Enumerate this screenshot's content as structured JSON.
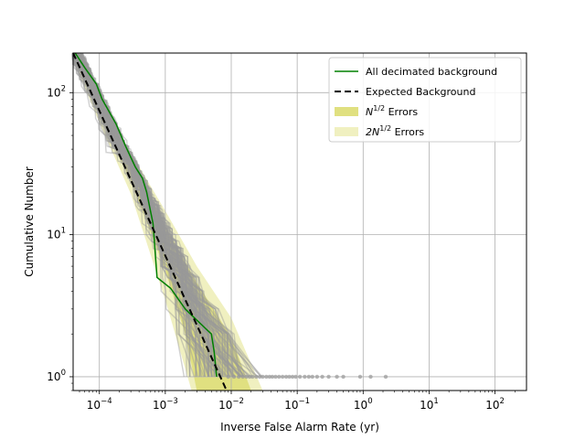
{
  "chart_data": {
    "type": "line",
    "title": "",
    "xlabel": "Inverse False Alarm Rate (yr)",
    "ylabel": "Cumulative Number",
    "xscale": "log",
    "yscale": "log",
    "xlim": [
      4e-05,
      300
    ],
    "ylim": [
      0.8,
      190
    ],
    "grid": true,
    "legend_position": "top-right",
    "x_ticks": [
      {
        "value": 0.0001,
        "base": "10",
        "exp": "−4"
      },
      {
        "value": 0.001,
        "base": "10",
        "exp": "−3"
      },
      {
        "value": 0.01,
        "base": "10",
        "exp": "−2"
      },
      {
        "value": 0.1,
        "base": "10",
        "exp": "−1"
      },
      {
        "value": 1,
        "base": "10",
        "exp": "0"
      },
      {
        "value": 10,
        "base": "10",
        "exp": "1"
      },
      {
        "value": 100,
        "base": "10",
        "exp": "2"
      }
    ],
    "y_ticks": [
      {
        "value": 1,
        "base": "10",
        "exp": "0"
      },
      {
        "value": 10,
        "base": "10",
        "exp": "1"
      },
      {
        "value": 100,
        "base": "10",
        "exp": "2"
      }
    ],
    "legend": [
      {
        "label": "All decimated background",
        "style": "line",
        "color": "#008000"
      },
      {
        "label": "Expected Background",
        "style": "dashed",
        "color": "#000000"
      },
      {
        "label": "N",
        "sup": "1/2",
        "suffix": " Errors",
        "style": "patch",
        "color": "#e0e080"
      },
      {
        "label": "2N",
        "sup": "1/2",
        "suffix": " Errors",
        "style": "patch",
        "color": "#f0f0c0"
      }
    ],
    "series": [
      {
        "name": "All decimated background",
        "color": "#008000",
        "points": [
          [
            4.3e-05,
            190
          ],
          [
            6e-05,
            150
          ],
          [
            9e-05,
            115
          ],
          [
            0.00011,
            90
          ],
          [
            0.00018,
            60
          ],
          [
            0.00025,
            42
          ],
          [
            0.00035,
            30
          ],
          [
            0.00045,
            25
          ],
          [
            0.00052,
            20
          ],
          [
            0.00065,
            12
          ],
          [
            0.00075,
            5
          ],
          [
            0.0012,
            4.2
          ],
          [
            0.002,
            3.0
          ],
          [
            0.003,
            2.5
          ],
          [
            0.005,
            2.0
          ],
          [
            0.0055,
            1.5
          ],
          [
            0.006,
            1.0
          ]
        ]
      },
      {
        "name": "Expected Background",
        "color": "#000000",
        "dashed": true,
        "points": [
          [
            4e-05,
            190
          ],
          [
            0.0085,
            0.8
          ]
        ]
      }
    ],
    "error_bands": [
      {
        "name": "2N^1/2 Errors",
        "color": "#f0f0c0",
        "lower": [
          [
            4e-05,
            171.5
          ],
          [
            0.0001,
            61.4
          ],
          [
            0.0003,
            19.4
          ],
          [
            0.001,
            3.46
          ],
          [
            0.0025,
            0.8
          ]
        ],
        "upper": [
          [
            4e-05,
            218.5
          ],
          [
            0.0001,
            92.6
          ],
          [
            0.0003,
            37.8
          ],
          [
            0.001,
            14.7
          ],
          [
            0.003,
            6.0
          ],
          [
            0.01,
            2.6
          ],
          [
            0.03,
            0.8
          ]
        ]
      },
      {
        "name": "N^1/2 Errors",
        "color": "#e0e080",
        "lower": [
          [
            4e-05,
            181
          ],
          [
            0.0001,
            69
          ],
          [
            0.0003,
            24
          ],
          [
            0.001,
            5.6
          ],
          [
            0.002,
            2.0
          ],
          [
            0.003,
            0.8
          ]
        ],
        "upper": [
          [
            4e-05,
            204
          ],
          [
            0.0001,
            85
          ],
          [
            0.0003,
            33
          ],
          [
            0.001,
            11.5
          ],
          [
            0.003,
            4.6
          ],
          [
            0.01,
            1.9
          ],
          [
            0.02,
            0.8
          ]
        ]
      }
    ],
    "background_trials": {
      "color": "#999999",
      "count": 100,
      "description_points": "many grey decimated-background curves scattered around the expected background, tails ending at cumulative number 1 between 2e-3 and 3"
    },
    "tail_dots": {
      "color": "#999999",
      "y": 1,
      "x": [
        0.009,
        0.011,
        0.013,
        0.015,
        0.017,
        0.019,
        0.021,
        0.024,
        0.027,
        0.03,
        0.034,
        0.038,
        0.042,
        0.047,
        0.053,
        0.06,
        0.068,
        0.076,
        0.085,
        0.095,
        0.11,
        0.13,
        0.15,
        0.17,
        0.2,
        0.24,
        0.3,
        0.4,
        0.5,
        0.9,
        1.3,
        2.2
      ]
    }
  }
}
